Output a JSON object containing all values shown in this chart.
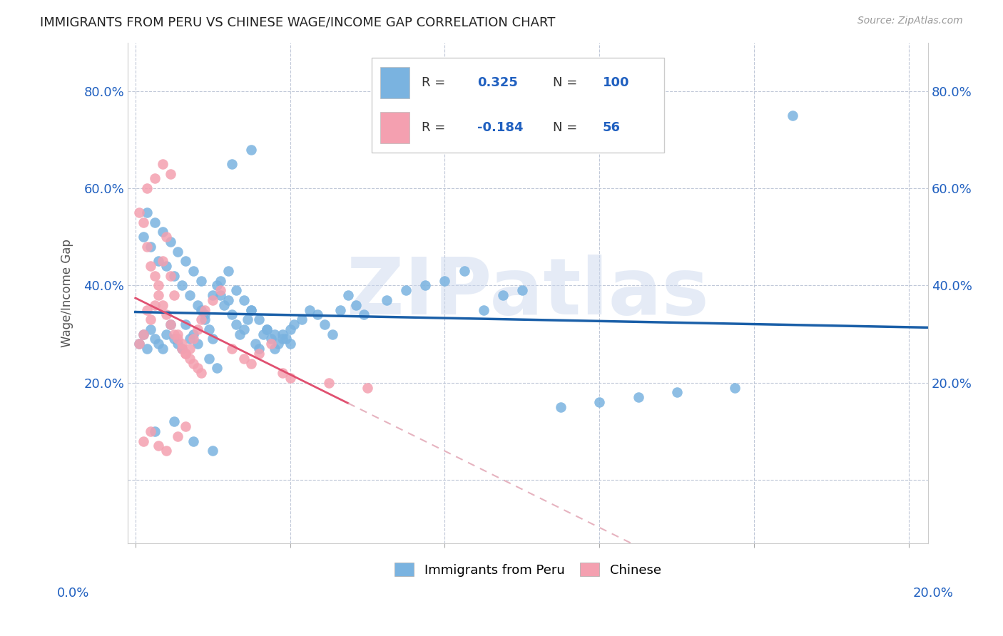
{
  "title": "IMMIGRANTS FROM PERU VS CHINESE WAGE/INCOME GAP CORRELATION CHART",
  "source": "Source: ZipAtlas.com",
  "ylabel": "Wage/Income Gap",
  "yticks": [
    0.0,
    0.2,
    0.4,
    0.6,
    0.8
  ],
  "ytick_labels": [
    "",
    "20.0%",
    "40.0%",
    "60.0%",
    "80.0%"
  ],
  "xlim": [
    -0.002,
    0.205
  ],
  "ylim": [
    -0.13,
    0.9
  ],
  "legend1_r": "0.325",
  "legend1_n": "100",
  "legend2_r": "-0.184",
  "legend2_n": "56",
  "blue_color": "#7ab3e0",
  "pink_color": "#f4a0b0",
  "blue_line_color": "#1a5fa8",
  "pink_line_color": "#e05070",
  "pink_dash_color": "#e0a0b0",
  "watermark": "ZIPatlas",
  "legend_label1": "Immigrants from Peru",
  "legend_label2": "Chinese",
  "blue_scatter_x": [
    0.001,
    0.002,
    0.003,
    0.004,
    0.005,
    0.006,
    0.007,
    0.008,
    0.009,
    0.01,
    0.011,
    0.012,
    0.013,
    0.014,
    0.015,
    0.016,
    0.017,
    0.018,
    0.019,
    0.02,
    0.021,
    0.022,
    0.023,
    0.024,
    0.025,
    0.026,
    0.027,
    0.028,
    0.029,
    0.03,
    0.031,
    0.032,
    0.033,
    0.034,
    0.035,
    0.036,
    0.037,
    0.038,
    0.039,
    0.04,
    0.041,
    0.043,
    0.045,
    0.047,
    0.049,
    0.051,
    0.053,
    0.055,
    0.057,
    0.059,
    0.002,
    0.004,
    0.006,
    0.008,
    0.01,
    0.012,
    0.014,
    0.016,
    0.018,
    0.02,
    0.022,
    0.024,
    0.026,
    0.028,
    0.03,
    0.032,
    0.034,
    0.036,
    0.038,
    0.04,
    0.003,
    0.005,
    0.007,
    0.009,
    0.011,
    0.013,
    0.015,
    0.017,
    0.019,
    0.021,
    0.065,
    0.07,
    0.075,
    0.08,
    0.085,
    0.09,
    0.095,
    0.1,
    0.11,
    0.12,
    0.13,
    0.14,
    0.155,
    0.17,
    0.005,
    0.01,
    0.015,
    0.02,
    0.025,
    0.03
  ],
  "blue_scatter_y": [
    0.28,
    0.3,
    0.27,
    0.31,
    0.29,
    0.28,
    0.27,
    0.3,
    0.32,
    0.29,
    0.28,
    0.27,
    0.32,
    0.29,
    0.3,
    0.28,
    0.35,
    0.33,
    0.31,
    0.29,
    0.4,
    0.38,
    0.36,
    0.37,
    0.34,
    0.32,
    0.3,
    0.31,
    0.33,
    0.35,
    0.28,
    0.27,
    0.3,
    0.31,
    0.29,
    0.27,
    0.28,
    0.3,
    0.29,
    0.31,
    0.32,
    0.33,
    0.35,
    0.34,
    0.32,
    0.3,
    0.35,
    0.38,
    0.36,
    0.34,
    0.5,
    0.48,
    0.45,
    0.44,
    0.42,
    0.4,
    0.38,
    0.36,
    0.34,
    0.38,
    0.41,
    0.43,
    0.39,
    0.37,
    0.35,
    0.33,
    0.31,
    0.3,
    0.29,
    0.28,
    0.55,
    0.53,
    0.51,
    0.49,
    0.47,
    0.45,
    0.43,
    0.41,
    0.25,
    0.23,
    0.37,
    0.39,
    0.4,
    0.41,
    0.43,
    0.35,
    0.38,
    0.39,
    0.15,
    0.16,
    0.17,
    0.18,
    0.19,
    0.75,
    0.1,
    0.12,
    0.08,
    0.06,
    0.65,
    0.68
  ],
  "pink_scatter_x": [
    0.001,
    0.002,
    0.003,
    0.004,
    0.005,
    0.006,
    0.007,
    0.008,
    0.009,
    0.01,
    0.011,
    0.012,
    0.013,
    0.014,
    0.015,
    0.016,
    0.017,
    0.018,
    0.02,
    0.022,
    0.025,
    0.028,
    0.03,
    0.032,
    0.035,
    0.038,
    0.04,
    0.05,
    0.06,
    0.001,
    0.002,
    0.003,
    0.004,
    0.005,
    0.006,
    0.007,
    0.008,
    0.009,
    0.01,
    0.011,
    0.012,
    0.013,
    0.014,
    0.015,
    0.016,
    0.017,
    0.003,
    0.005,
    0.007,
    0.009,
    0.002,
    0.004,
    0.006,
    0.008,
    0.011,
    0.013
  ],
  "pink_scatter_y": [
    0.28,
    0.3,
    0.35,
    0.33,
    0.36,
    0.4,
    0.45,
    0.5,
    0.42,
    0.38,
    0.3,
    0.28,
    0.26,
    0.27,
    0.29,
    0.31,
    0.33,
    0.35,
    0.37,
    0.39,
    0.27,
    0.25,
    0.24,
    0.26,
    0.28,
    0.22,
    0.21,
    0.2,
    0.19,
    0.55,
    0.53,
    0.48,
    0.44,
    0.42,
    0.38,
    0.36,
    0.34,
    0.32,
    0.3,
    0.29,
    0.27,
    0.26,
    0.25,
    0.24,
    0.23,
    0.22,
    0.6,
    0.62,
    0.65,
    0.63,
    0.08,
    0.1,
    0.07,
    0.06,
    0.09,
    0.11
  ]
}
